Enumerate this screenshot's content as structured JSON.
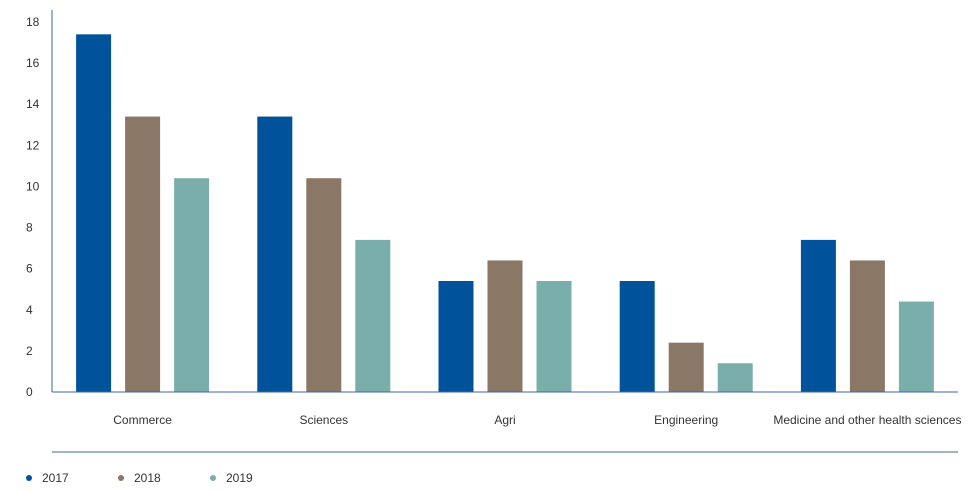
{
  "chart_data": {
    "type": "bar",
    "categories": [
      "Commerce",
      "Sciences",
      "Agri",
      "Engineering",
      "Medicine and other health sciences"
    ],
    "series": [
      {
        "name": "2017",
        "color": "#00539b",
        "values": [
          17.4,
          13.4,
          5.4,
          5.4,
          7.4
        ]
      },
      {
        "name": "2018",
        "color": "#8b7765",
        "values": [
          13.4,
          10.4,
          6.4,
          2.4,
          6.4
        ]
      },
      {
        "name": "2019",
        "color": "#7aaeab",
        "values": [
          10.4,
          7.4,
          5.4,
          1.4,
          4.4
        ]
      }
    ],
    "ylim": [
      0,
      18
    ],
    "yticks": [
      "0",
      "2",
      "4",
      "6",
      "8",
      "10",
      "12",
      "14",
      "16",
      "18"
    ],
    "legend_position": "bottom-left",
    "grid": false,
    "axis_color": "#3b6aa0"
  }
}
